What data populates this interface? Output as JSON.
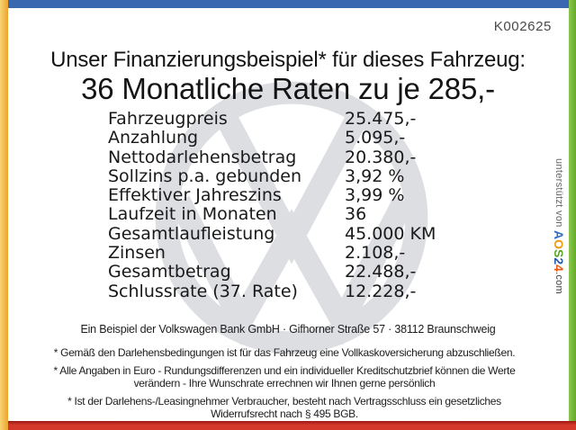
{
  "page": {
    "code": "K002625"
  },
  "header": {
    "intro": "Unser Finanzierungsbeispiel* für dieses Fahrzeug:",
    "headline": "36 Monatliche Raten zu je 285,-"
  },
  "finance_table": {
    "rows": [
      {
        "label": "Fahrzeugpreis",
        "value": "25.475,-"
      },
      {
        "label": "Anzahlung",
        "value": "5.095,-"
      },
      {
        "label": "Nettodarlehensbetrag",
        "value": "20.380,-"
      },
      {
        "label": "Sollzins p.a. gebunden",
        "value": "3,92 %"
      },
      {
        "label": "Effektiver Jahreszins",
        "value": "3,99 %"
      },
      {
        "label": "Laufzeit in Monaten",
        "value": "36"
      },
      {
        "label": "Gesamtlaufleistung",
        "value": "45.000 KM"
      },
      {
        "label": "Zinsen",
        "value": "2.108,-"
      },
      {
        "label": "Gesamtbetrag",
        "value": "22.488,-"
      },
      {
        "label": "Schlussrate (37. Rate)",
        "value": "12.228,-"
      }
    ]
  },
  "footer": {
    "bank_line": "Ein Beispiel der Volkswagen Bank GmbH · Gifhorner Straße 57 · 38112 Braunschweig",
    "notes": [
      "* Gemäß den Darlehensbedingungen ist für das Fahrzeug eine Vollkaskoversicherung abzuschließen.",
      "* Alle Angaben in Euro - Rundungsdifferenzen und ein individueller Kreditschutzbrief können die Werte\nverändern - Ihre Wunschrate errechnen wir Ihnen gerne persönlich",
      "* Ist der Darlehens-/Leasingnehmer Verbraucher, besteht nach Vertragsschluss ein gesetzliches\nWiderrufsrecht nach § 495 BGB."
    ]
  },
  "credits": {
    "prefix": "unterstützt von ",
    "brand_letters": [
      {
        "char": "A",
        "color": "#2e6fc4"
      },
      {
        "char": "O",
        "color": "#f09c0a"
      },
      {
        "char": "S",
        "color": "#57a528"
      },
      {
        "char": "2",
        "color": "#2458a8"
      },
      {
        "char": "4",
        "color": "#e8590c"
      }
    ],
    "suffix": ".com"
  },
  "watermark": {
    "icon": "vw-logo"
  },
  "colors": {
    "top_bar": "#3a68b0",
    "left_bar_light": "#f8d472",
    "left_bar_dark": "#eca32f",
    "right_bar_light": "#8ac74e",
    "right_bar_dark": "#64aa26",
    "bottom_bar": "#d4382a",
    "bottom_bar_dark": "#9c1812",
    "watermark": "#dcdee2",
    "ink": "#1a1a1a",
    "muted": "#4a4a4a"
  }
}
